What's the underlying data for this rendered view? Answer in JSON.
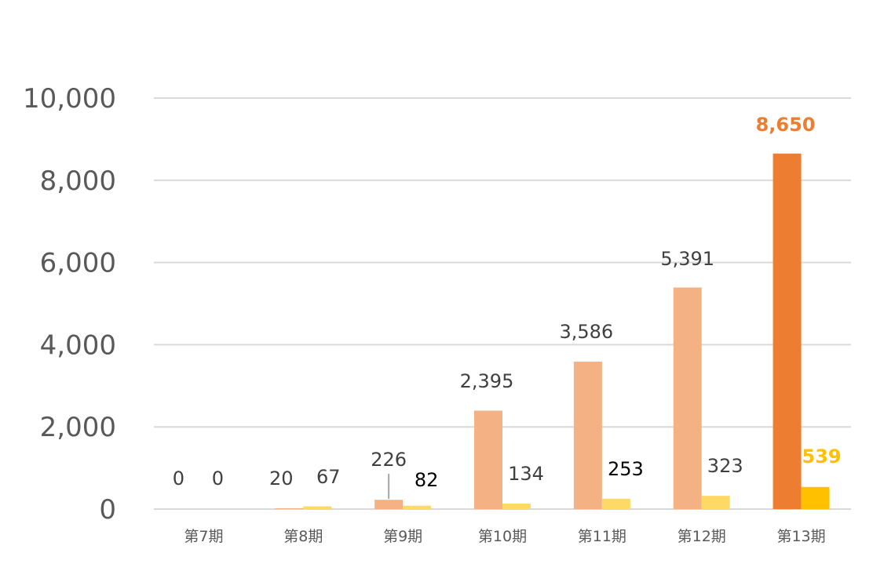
{
  "chart_data": {
    "type": "bar",
    "title": "",
    "xlabel": "",
    "ylabel": "",
    "categories": [
      "第7期",
      "第8期",
      "第9期",
      "第10期",
      "第11期",
      "第12期",
      "第13期"
    ],
    "series": [
      {
        "values": [
          0,
          20,
          226,
          2395,
          3586,
          5391,
          8650
        ],
        "color": "#F4B183",
        "highlight_color": "#ED7D31"
      },
      {
        "values": [
          0,
          67,
          82,
          134,
          253,
          323,
          539
        ],
        "color": "#FFD966",
        "highlight_color": "#FFC000"
      }
    ],
    "data_labels": [
      [
        "0",
        "20",
        "226",
        "2,395",
        "3,586",
        "5,391",
        "8,650"
      ],
      [
        "0",
        "67",
        "82",
        "134",
        "253",
        "323",
        "539"
      ]
    ],
    "ylim": [
      0,
      10000
    ],
    "yticks": [
      "0",
      "2,000",
      "4,000",
      "6,000",
      "8,000",
      "10,000"
    ],
    "grid": true,
    "legend": "none",
    "highlighted_category": "第13期",
    "colors": {
      "gridline": "#D9D9D9",
      "axis_text": "#595959",
      "label_text": "#404040",
      "label_text_dark": "#000000"
    }
  }
}
